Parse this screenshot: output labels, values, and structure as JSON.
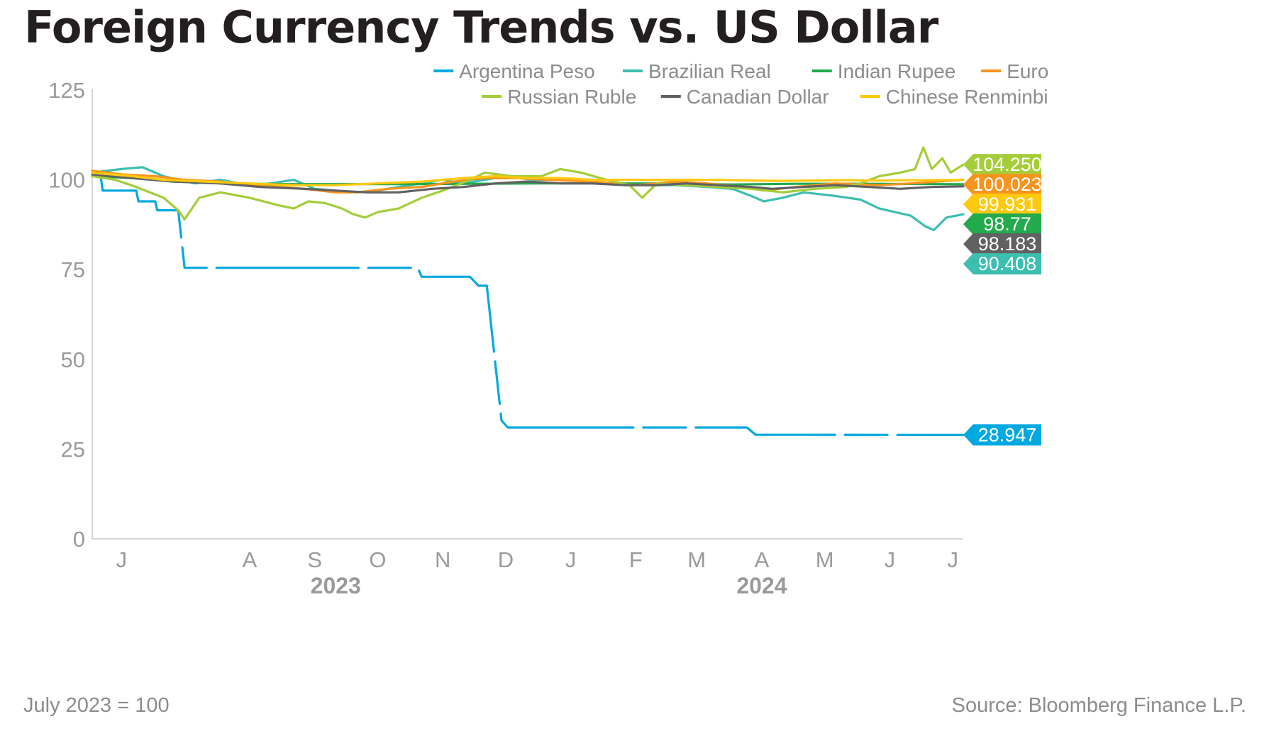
{
  "title": "Foreign Currency Trends vs. US Dollar",
  "note": "July 2023 = 100",
  "source": "Source: Bloomberg Finance L.P.",
  "chart_data": {
    "type": "line",
    "ylim": [
      0,
      125
    ],
    "y_ticks": [
      0,
      25,
      50,
      75,
      100,
      125
    ],
    "x_range": [
      "2023-06-01",
      "2024-07-20"
    ],
    "x_ticks": [
      {
        "label": "J",
        "date": "2023-06-15"
      },
      {
        "label": "A",
        "date": "2023-08-15"
      },
      {
        "label": "S",
        "date": "2023-09-15"
      },
      {
        "label": "O",
        "date": "2023-10-15"
      },
      {
        "label": "N",
        "date": "2023-11-15"
      },
      {
        "label": "D",
        "date": "2023-12-15"
      },
      {
        "label": "J",
        "date": "2024-01-15"
      },
      {
        "label": "F",
        "date": "2024-02-15"
      },
      {
        "label": "M",
        "date": "2024-03-15"
      },
      {
        "label": "A",
        "date": "2024-04-15"
      },
      {
        "label": "M",
        "date": "2024-05-15"
      },
      {
        "label": "J",
        "date": "2024-06-15"
      },
      {
        "label": "J",
        "date": "2024-07-15"
      }
    ],
    "year_labels": [
      {
        "label": "2023",
        "date": "2023-09-25"
      },
      {
        "label": "2024",
        "date": "2024-04-15"
      }
    ],
    "grid": false,
    "legend_position": "top-right",
    "series": [
      {
        "name": "Argentina Peso",
        "color": "#00a9e0",
        "end_label": "28.947",
        "points": [
          [
            "2023-06-01",
            101
          ],
          [
            "2023-06-05",
            101
          ],
          [
            "2023-06-06",
            97
          ],
          [
            "2023-06-22",
            97
          ],
          [
            "2023-06-23",
            94
          ],
          [
            "2023-07-01",
            94
          ],
          [
            "2023-07-02",
            91.5
          ],
          [
            "2023-07-12",
            91.5
          ],
          [
            "2023-07-15",
            75.5
          ],
          [
            "2023-11-03",
            75.5
          ],
          [
            "2023-11-05",
            73
          ],
          [
            "2023-11-28",
            73
          ],
          [
            "2023-12-02",
            70.5
          ],
          [
            "2023-12-06",
            70.5
          ],
          [
            "2023-12-13",
            33
          ],
          [
            "2023-12-16",
            31
          ],
          [
            "2024-04-08",
            31
          ],
          [
            "2024-04-12",
            29
          ],
          [
            "2024-07-20",
            28.947
          ]
        ]
      },
      {
        "name": "Brazilian Real",
        "color": "#3cbeb0",
        "end_label": "90.408",
        "points": [
          [
            "2023-06-01",
            102
          ],
          [
            "2023-06-15",
            103
          ],
          [
            "2023-06-25",
            103.5
          ],
          [
            "2023-07-05",
            101
          ],
          [
            "2023-07-20",
            99
          ],
          [
            "2023-08-01",
            100
          ],
          [
            "2023-08-15",
            98.5
          ],
          [
            "2023-08-25",
            99
          ],
          [
            "2023-09-05",
            100
          ],
          [
            "2023-09-15",
            97.5
          ],
          [
            "2023-09-25",
            97
          ],
          [
            "2023-10-05",
            96.5
          ],
          [
            "2023-10-15",
            97
          ],
          [
            "2023-10-25",
            98
          ],
          [
            "2023-11-05",
            99
          ],
          [
            "2023-11-15",
            100
          ],
          [
            "2023-11-25",
            99
          ],
          [
            "2023-12-05",
            100
          ],
          [
            "2023-12-15",
            101
          ],
          [
            "2023-12-28",
            100
          ],
          [
            "2024-01-10",
            100
          ],
          [
            "2024-01-25",
            99.5
          ],
          [
            "2024-02-05",
            99
          ],
          [
            "2024-02-20",
            98.5
          ],
          [
            "2024-03-05",
            98.5
          ],
          [
            "2024-03-20",
            98
          ],
          [
            "2024-04-01",
            97.5
          ],
          [
            "2024-04-10",
            95.5
          ],
          [
            "2024-04-16",
            94
          ],
          [
            "2024-04-25",
            95
          ],
          [
            "2024-05-05",
            96.5
          ],
          [
            "2024-05-20",
            95.5
          ],
          [
            "2024-06-01",
            94.5
          ],
          [
            "2024-06-10",
            92
          ],
          [
            "2024-06-25",
            90
          ],
          [
            "2024-07-02",
            87
          ],
          [
            "2024-07-06",
            86
          ],
          [
            "2024-07-12",
            89.5
          ],
          [
            "2024-07-20",
            90.408
          ]
        ]
      },
      {
        "name": "Indian Rupee",
        "color": "#22aa4c",
        "end_label": "98.77",
        "points": [
          [
            "2023-06-01",
            101
          ],
          [
            "2023-06-20",
            100.5
          ],
          [
            "2023-07-10",
            99.5
          ],
          [
            "2023-08-01",
            99
          ],
          [
            "2023-09-01",
            98.8
          ],
          [
            "2023-10-01",
            98.8
          ],
          [
            "2023-11-01",
            98.8
          ],
          [
            "2023-12-01",
            98.9
          ],
          [
            "2024-01-01",
            99
          ],
          [
            "2024-02-01",
            99
          ],
          [
            "2024-03-01",
            99
          ],
          [
            "2024-04-01",
            98.7
          ],
          [
            "2024-05-01",
            98.9
          ],
          [
            "2024-06-01",
            98.9
          ],
          [
            "2024-07-20",
            98.77
          ]
        ]
      },
      {
        "name": "Euro",
        "color": "#f7941d",
        "end_label": "100.023",
        "points": [
          [
            "2023-06-01",
            102.5
          ],
          [
            "2023-06-15",
            101.5
          ],
          [
            "2023-07-01",
            101
          ],
          [
            "2023-07-15",
            100
          ],
          [
            "2023-08-01",
            99.5
          ],
          [
            "2023-08-20",
            98.5
          ],
          [
            "2023-09-10",
            97.5
          ],
          [
            "2023-09-25",
            96.5
          ],
          [
            "2023-10-05",
            96.5
          ],
          [
            "2023-10-20",
            97.5
          ],
          [
            "2023-11-05",
            98
          ],
          [
            "2023-11-20",
            99.5
          ],
          [
            "2023-12-05",
            100.5
          ],
          [
            "2023-12-20",
            100.5
          ],
          [
            "2024-01-05",
            100
          ],
          [
            "2024-01-25",
            99.5
          ],
          [
            "2024-02-15",
            98.5
          ],
          [
            "2024-03-05",
            99.5
          ],
          [
            "2024-03-20",
            99
          ],
          [
            "2024-04-05",
            98
          ],
          [
            "2024-04-16",
            97
          ],
          [
            "2024-05-01",
            98
          ],
          [
            "2024-05-20",
            99
          ],
          [
            "2024-06-10",
            98.5
          ],
          [
            "2024-06-25",
            99
          ],
          [
            "2024-07-20",
            100.023
          ]
        ]
      },
      {
        "name": "Russian Ruble",
        "color": "#a4cd39",
        "end_label": "104.250",
        "points": [
          [
            "2023-06-01",
            101
          ],
          [
            "2023-06-12",
            100
          ],
          [
            "2023-06-22",
            98
          ],
          [
            "2023-07-05",
            95
          ],
          [
            "2023-07-12",
            91.5
          ],
          [
            "2023-07-15",
            89
          ],
          [
            "2023-07-22",
            95
          ],
          [
            "2023-08-01",
            96.5
          ],
          [
            "2023-08-15",
            95
          ],
          [
            "2023-08-28",
            93
          ],
          [
            "2023-09-05",
            92
          ],
          [
            "2023-09-12",
            94
          ],
          [
            "2023-09-20",
            93.5
          ],
          [
            "2023-09-28",
            92
          ],
          [
            "2023-10-03",
            90.5
          ],
          [
            "2023-10-09",
            89.5
          ],
          [
            "2023-10-15",
            91
          ],
          [
            "2023-10-25",
            92
          ],
          [
            "2023-11-05",
            95
          ],
          [
            "2023-11-15",
            97
          ],
          [
            "2023-11-28",
            100
          ],
          [
            "2023-12-05",
            102
          ],
          [
            "2023-12-18",
            101
          ],
          [
            "2024-01-01",
            101
          ],
          [
            "2024-01-10",
            103
          ],
          [
            "2024-01-20",
            102
          ],
          [
            "2024-02-01",
            100
          ],
          [
            "2024-02-12",
            98.5
          ],
          [
            "2024-02-18",
            95
          ],
          [
            "2024-02-25",
            99
          ],
          [
            "2024-03-10",
            98.5
          ],
          [
            "2024-03-25",
            98
          ],
          [
            "2024-04-10",
            97.5
          ],
          [
            "2024-04-25",
            96.5
          ],
          [
            "2024-05-10",
            97.5
          ],
          [
            "2024-05-25",
            98
          ],
          [
            "2024-06-01",
            99
          ],
          [
            "2024-06-10",
            101
          ],
          [
            "2024-06-20",
            102
          ],
          [
            "2024-06-27",
            103
          ],
          [
            "2024-07-01",
            109
          ],
          [
            "2024-07-05",
            103
          ],
          [
            "2024-07-10",
            106
          ],
          [
            "2024-07-14",
            102
          ],
          [
            "2024-07-20",
            104.25
          ]
        ]
      },
      {
        "name": "Canadian Dollar",
        "color": "#616161",
        "end_label": "98.183",
        "points": [
          [
            "2023-06-01",
            101.5
          ],
          [
            "2023-06-20",
            100.5
          ],
          [
            "2023-07-10",
            99.5
          ],
          [
            "2023-08-01",
            99
          ],
          [
            "2023-08-20",
            98
          ],
          [
            "2023-09-10",
            97.5
          ],
          [
            "2023-09-25",
            97
          ],
          [
            "2023-10-10",
            96.5
          ],
          [
            "2023-10-25",
            96.5
          ],
          [
            "2023-11-10",
            97.5
          ],
          [
            "2023-11-25",
            98
          ],
          [
            "2023-12-10",
            99
          ],
          [
            "2023-12-25",
            99.5
          ],
          [
            "2024-01-10",
            99
          ],
          [
            "2024-01-25",
            99
          ],
          [
            "2024-02-10",
            98.5
          ],
          [
            "2024-02-25",
            98.5
          ],
          [
            "2024-03-10",
            99
          ],
          [
            "2024-03-25",
            98.5
          ],
          [
            "2024-04-10",
            98
          ],
          [
            "2024-04-20",
            97.5
          ],
          [
            "2024-05-05",
            98
          ],
          [
            "2024-05-20",
            98.5
          ],
          [
            "2024-06-05",
            98
          ],
          [
            "2024-06-20",
            97.5
          ],
          [
            "2024-07-05",
            98
          ],
          [
            "2024-07-20",
            98.183
          ]
        ]
      },
      {
        "name": "Chinese Renminbi",
        "color": "#ffc90e",
        "end_label": "99.931",
        "points": [
          [
            "2023-06-01",
            102
          ],
          [
            "2023-06-20",
            101
          ],
          [
            "2023-07-05",
            100
          ],
          [
            "2023-07-25",
            99.5
          ],
          [
            "2023-08-15",
            99
          ],
          [
            "2023-09-05",
            98.5
          ],
          [
            "2023-09-25",
            98.5
          ],
          [
            "2023-10-15",
            99
          ],
          [
            "2023-11-05",
            99.5
          ],
          [
            "2023-11-25",
            100.5
          ],
          [
            "2023-12-10",
            101
          ],
          [
            "2023-12-25",
            100.5
          ],
          [
            "2024-01-10",
            100.5
          ],
          [
            "2024-01-25",
            100
          ],
          [
            "2024-02-10",
            100
          ],
          [
            "2024-02-25",
            100
          ],
          [
            "2024-03-10",
            100
          ],
          [
            "2024-03-25",
            100
          ],
          [
            "2024-04-10",
            99.8
          ],
          [
            "2024-04-25",
            99.7
          ],
          [
            "2024-05-10",
            99.8
          ],
          [
            "2024-05-25",
            99.9
          ],
          [
            "2024-06-10",
            99.8
          ],
          [
            "2024-06-25",
            99.9
          ],
          [
            "2024-07-20",
            99.931
          ]
        ]
      }
    ]
  }
}
